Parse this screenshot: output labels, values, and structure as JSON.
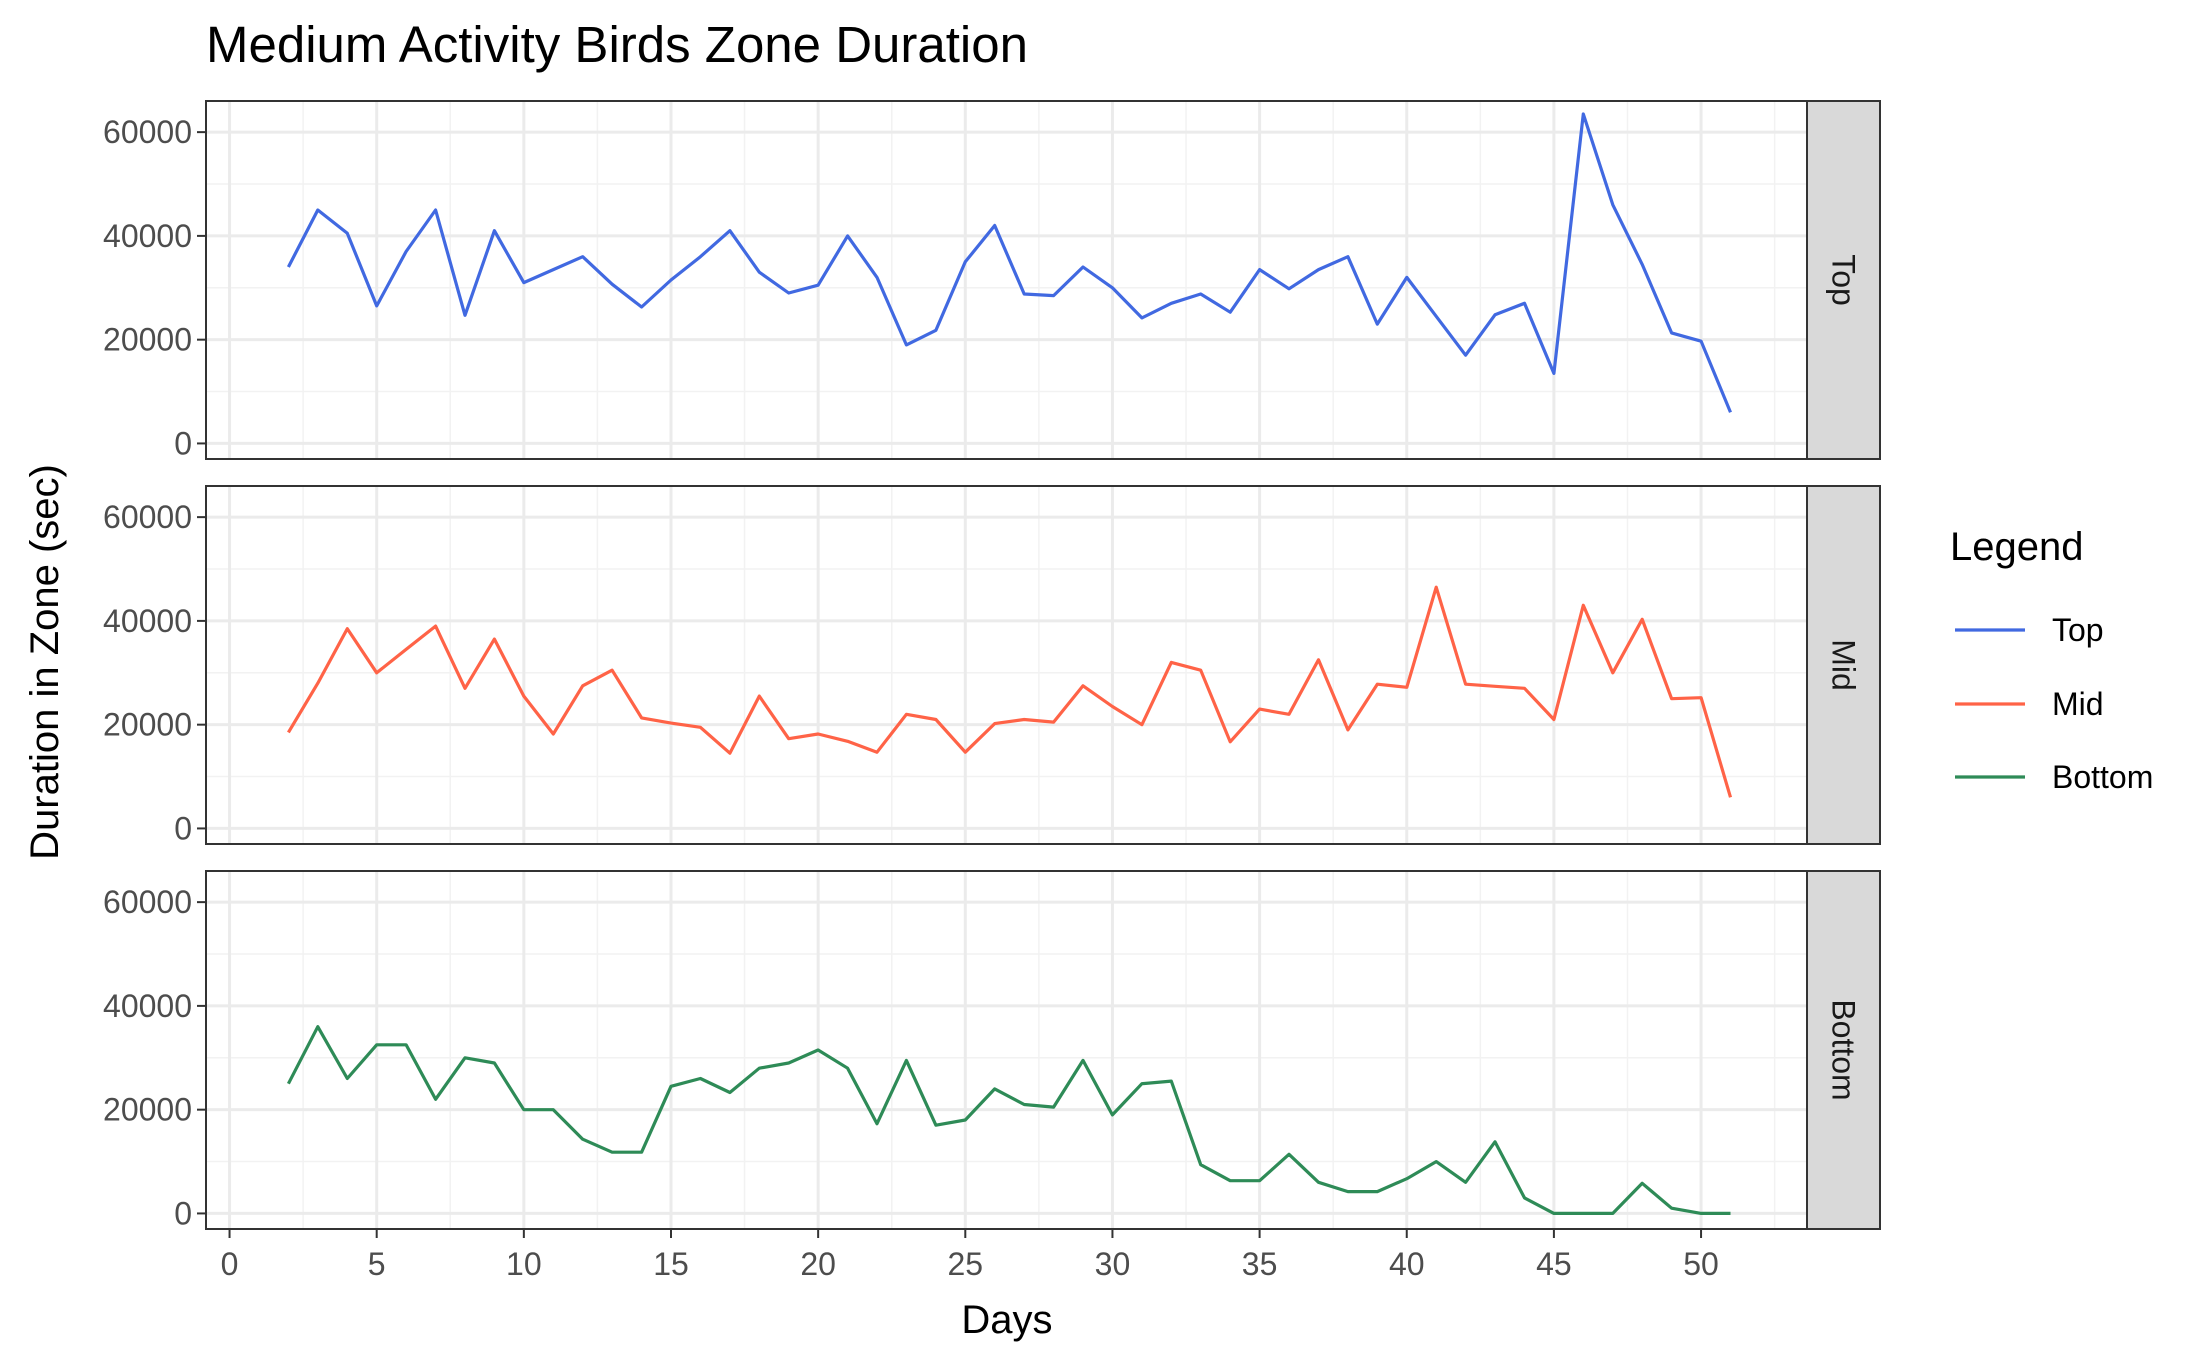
{
  "chart_data": {
    "type": "line",
    "title": "Medium Activity Birds Zone Duration",
    "xlabel": "Days",
    "ylabel": "Duration in Zone (sec)",
    "xlim": [
      -0.8,
      53.6
    ],
    "ylim": [
      -3000,
      66000
    ],
    "x_ticks": [
      0,
      5,
      10,
      15,
      20,
      25,
      30,
      35,
      40,
      45,
      50
    ],
    "y_ticks": [
      0,
      20000,
      40000,
      60000
    ],
    "grid": true,
    "facet_by": "zone",
    "legend": {
      "title": "Legend",
      "position": "right"
    },
    "x": [
      2,
      3,
      4,
      5,
      6,
      7,
      8,
      9,
      10,
      11,
      12,
      13,
      14,
      15,
      16,
      17,
      18,
      19,
      20,
      21,
      22,
      23,
      24,
      25,
      26,
      27,
      28,
      29,
      30,
      31,
      32,
      33,
      34,
      35,
      36,
      37,
      38,
      39,
      40,
      41,
      42,
      43,
      44,
      45,
      46,
      47,
      48,
      49,
      50,
      51
    ],
    "series": [
      {
        "name": "Top",
        "facet": "Top",
        "color": "#4169e1",
        "values": [
          34000,
          45000,
          40500,
          26500,
          37000,
          45000,
          24700,
          41000,
          31000,
          33500,
          36000,
          30700,
          26300,
          31500,
          36000,
          41000,
          33000,
          29000,
          30500,
          40000,
          32000,
          19000,
          21800,
          35000,
          42000,
          28800,
          28500,
          34000,
          30000,
          24200,
          27000,
          28800,
          25300,
          33500,
          29800,
          33500,
          36000,
          23000,
          32000,
          24500,
          17000,
          24800,
          27000,
          13500,
          63500,
          46000,
          34500,
          21300,
          19700,
          6000
        ]
      },
      {
        "name": "Mid",
        "facet": "Mid",
        "color": "#ff6347",
        "values": [
          18500,
          28000,
          38500,
          30000,
          34500,
          39000,
          27000,
          36500,
          25500,
          18200,
          27500,
          30500,
          21300,
          20300,
          19500,
          14500,
          25500,
          17300,
          18200,
          16800,
          14700,
          22000,
          21000,
          14700,
          20200,
          21000,
          20500,
          27500,
          23500,
          20000,
          32000,
          30500,
          16700,
          23000,
          22000,
          32500,
          19000,
          27800,
          27200,
          46500,
          27800,
          27400,
          27000,
          21000,
          43000,
          30000,
          40300,
          25000,
          25200,
          6000
        ]
      },
      {
        "name": "Bottom",
        "facet": "Bottom",
        "color": "#2e8b57",
        "values": [
          25000,
          36000,
          26000,
          32500,
          32500,
          22000,
          30000,
          29000,
          20000,
          20000,
          14300,
          11800,
          11800,
          24500,
          26000,
          23300,
          28000,
          29000,
          31500,
          28000,
          17300,
          29500,
          17000,
          18000,
          24000,
          21000,
          20500,
          29500,
          19000,
          25000,
          25500,
          9400,
          6300,
          6300,
          11400,
          6000,
          4200,
          4200,
          6700,
          10000,
          6000,
          13800,
          3000,
          0,
          0,
          0,
          5800,
          1000,
          0,
          0
        ]
      }
    ]
  }
}
